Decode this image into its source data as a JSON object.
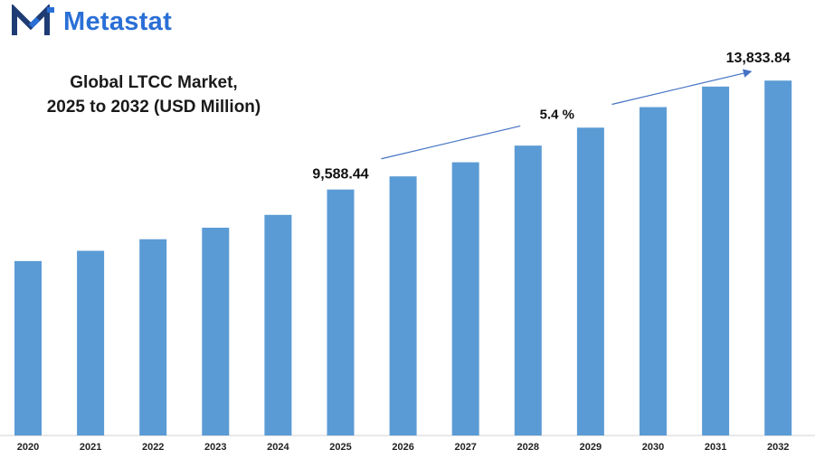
{
  "brand": {
    "name": "Metastat",
    "logo_icon": "metastat-m-logo-icon",
    "color": "#2a6fd6"
  },
  "chart_data": {
    "type": "bar",
    "title_line1": "Global LTCC Market,",
    "title_line2": "2025 to 2032 (USD Million)",
    "categories": [
      "2020",
      "2021",
      "2022",
      "2023",
      "2024",
      "2025",
      "2026",
      "2027",
      "2028",
      "2029",
      "2030",
      "2031",
      "2032"
    ],
    "values": [
      6800,
      7200,
      7650,
      8100,
      8600,
      9588.44,
      10100,
      10650,
      11300,
      12000,
      12800,
      13600,
      13833.84
    ],
    "data_labels": {
      "2025": "9,588.44",
      "2032": "13,833.84"
    },
    "cagr_label": "5.4  %",
    "bar_color": "#5b9bd5",
    "ylim": [
      0,
      16200
    ],
    "xlabel": "",
    "ylabel": "",
    "grid": false,
    "legend": "none"
  }
}
